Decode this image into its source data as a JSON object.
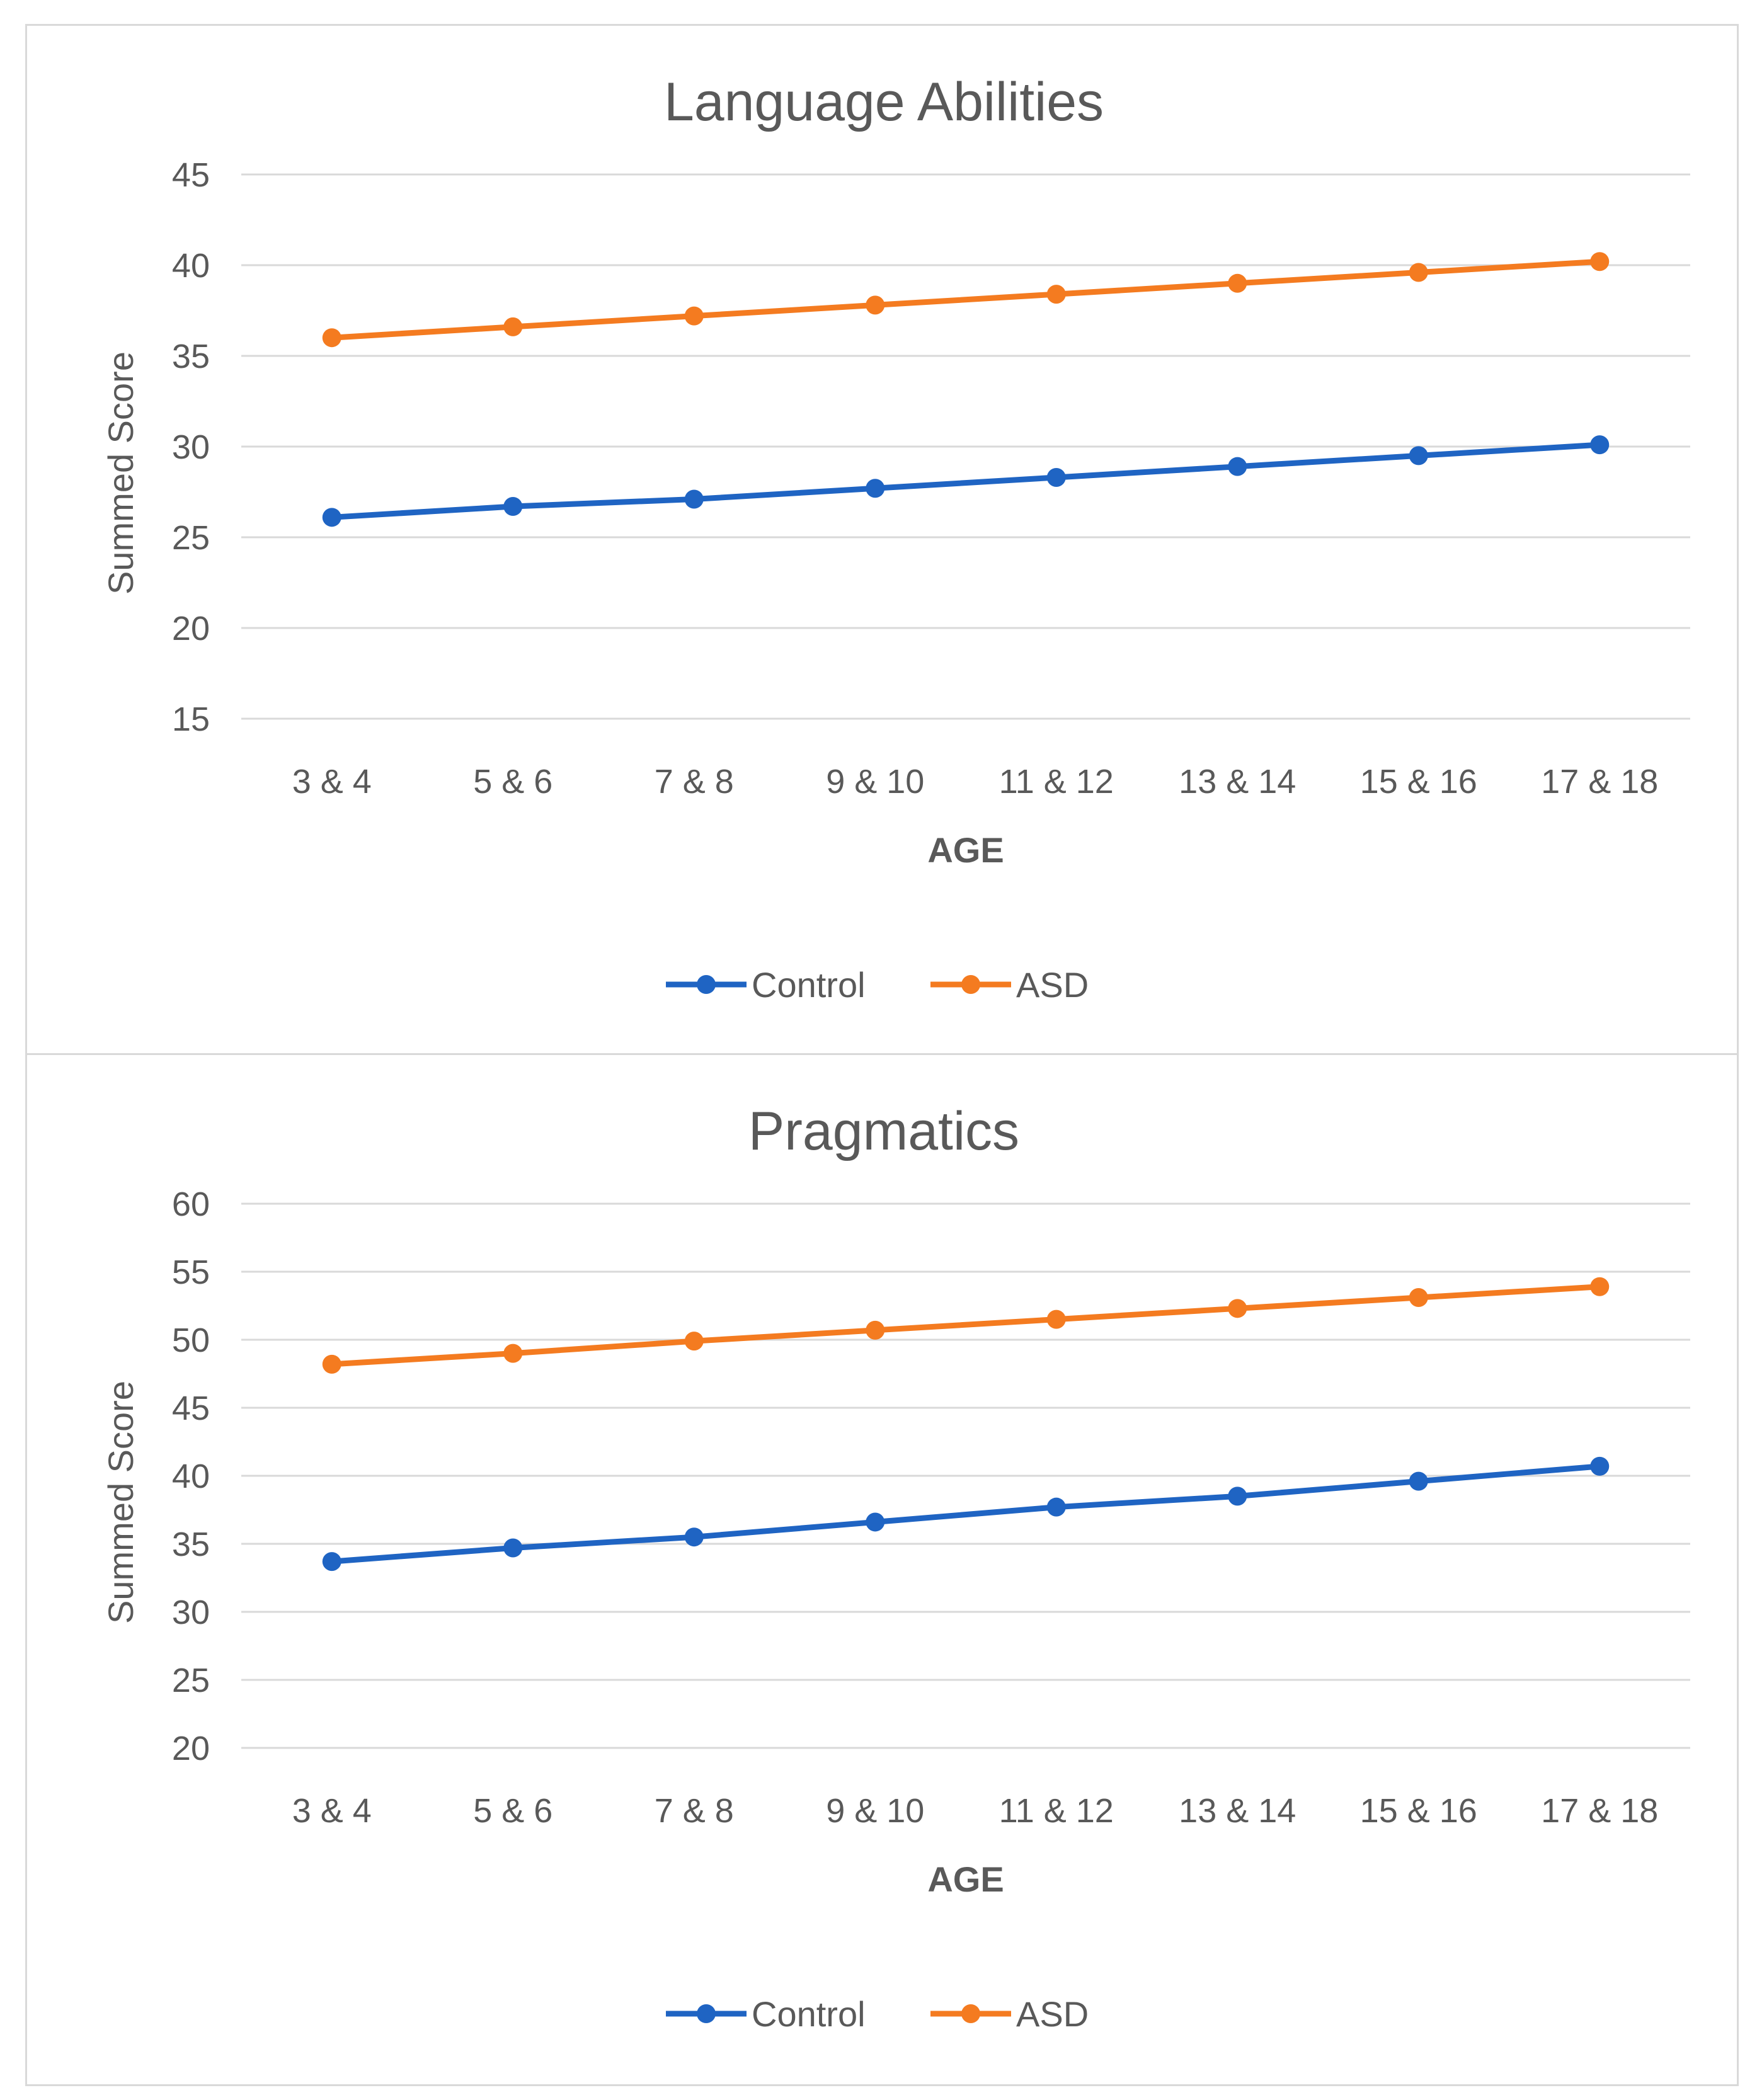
{
  "chart_data": [
    {
      "type": "line",
      "title": "Language Abilities",
      "xlabel": "AGE",
      "ylabel": "Summed Score",
      "categories": [
        "3 & 4",
        "5 & 6",
        "7 & 8",
        "9 & 10",
        "11 & 12",
        "13 & 14",
        "15 & 16",
        "17 & 18"
      ],
      "yticks": [
        "15",
        "20",
        "25",
        "30",
        "35",
        "40",
        "45"
      ],
      "ylim": [
        15,
        45
      ],
      "grid": true,
      "legend_position": "bottom",
      "series": [
        {
          "name": "Control",
          "color": "#1f64c3",
          "values": [
            26.1,
            26.7,
            27.1,
            27.7,
            28.3,
            28.9,
            29.5,
            30.1
          ]
        },
        {
          "name": "ASD",
          "color": "#f47b20",
          "values": [
            36.0,
            36.6,
            37.2,
            37.8,
            38.4,
            39.0,
            39.6,
            40.2
          ]
        }
      ]
    },
    {
      "type": "line",
      "title": "Pragmatics",
      "xlabel": "AGE",
      "ylabel": "Summed Score",
      "categories": [
        "3 & 4",
        "5 & 6",
        "7 & 8",
        "9 & 10",
        "11 & 12",
        "13 & 14",
        "15 & 16",
        "17 & 18"
      ],
      "yticks": [
        "20",
        "25",
        "30",
        "35",
        "40",
        "45",
        "50",
        "55",
        "60"
      ],
      "ylim": [
        20,
        60
      ],
      "grid": true,
      "legend_position": "bottom",
      "series": [
        {
          "name": "Control",
          "color": "#1f64c3",
          "values": [
            33.7,
            34.7,
            35.5,
            36.6,
            37.7,
            38.5,
            39.6,
            40.7
          ]
        },
        {
          "name": "ASD",
          "color": "#f47b20",
          "values": [
            48.2,
            49.0,
            49.9,
            50.7,
            51.5,
            52.3,
            53.1,
            53.9
          ]
        }
      ]
    }
  ]
}
